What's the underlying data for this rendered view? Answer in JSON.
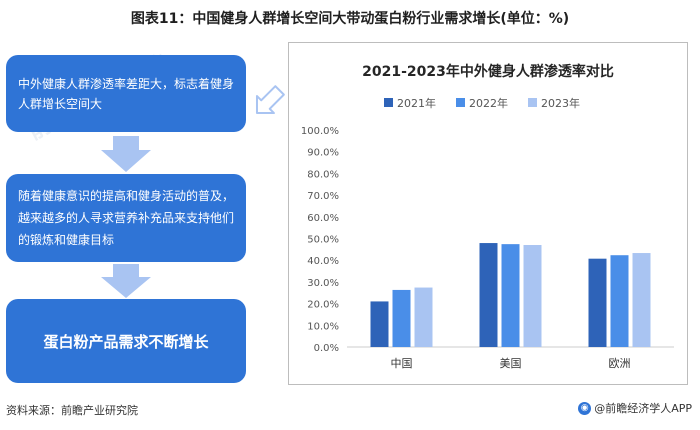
{
  "figure_title": "图表11：中国健身人群增长空间大带动蛋白粉行业需求增长(单位：%)",
  "flow": {
    "box1": "中外健康人群渗透率差距大，标志着健身人群增长空间大",
    "box2": "随着健康意识的提高和健身活动的普及，越来越多的人寻求营养补充品来支持他们的锻炼和健康目标",
    "box3": "蛋白粉产品需求不断增长"
  },
  "watermark": "前瞻产业研究院",
  "chart_data": {
    "type": "bar",
    "title": "2021-2023年中外健身人群渗透率对比",
    "categories": [
      "中国",
      "美国",
      "欧洲"
    ],
    "series": [
      {
        "name": "2021年",
        "values": [
          21.0,
          47.9,
          40.7
        ],
        "color": "#2e63b8"
      },
      {
        "name": "2022年",
        "values": [
          26.3,
          47.4,
          42.3
        ],
        "color": "#4a8ee8"
      },
      {
        "name": "2023年",
        "values": [
          27.4,
          47.0,
          43.3
        ],
        "color": "#a9c4f2"
      }
    ],
    "ylim": [
      0,
      100
    ],
    "yticks": [
      "0.0%",
      "10.0%",
      "20.0%",
      "30.0%",
      "40.0%",
      "50.0%",
      "60.0%",
      "70.0%",
      "80.0%",
      "90.0%",
      "100.0%"
    ],
    "grid": false,
    "legend": "top"
  },
  "footer": {
    "source": "资料来源：前瞻产业研究院",
    "brand": "@前瞻经济学人APP"
  },
  "colors": {
    "accent": "#2f74d6",
    "arrow": "#a9c4f2"
  }
}
